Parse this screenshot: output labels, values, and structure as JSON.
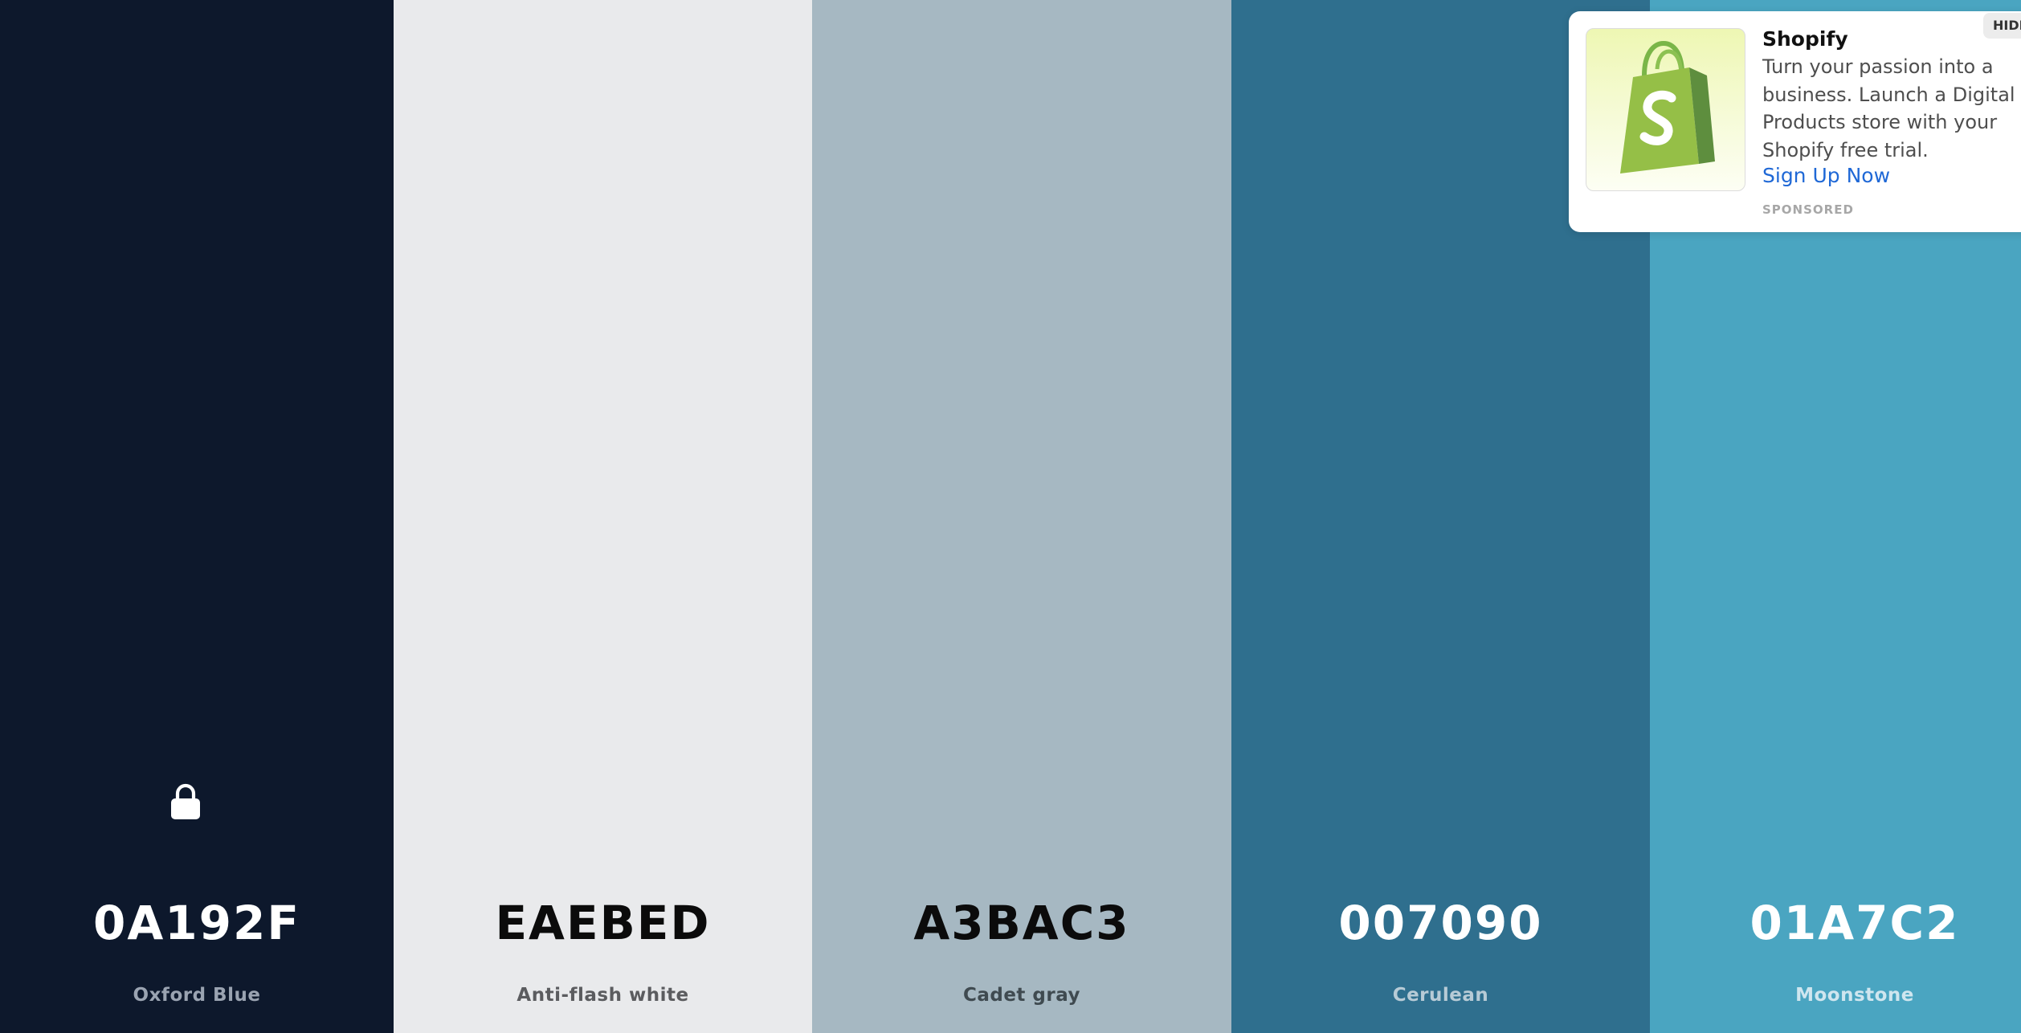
{
  "palette": {
    "colors": [
      {
        "hex": "0A192F",
        "name": "Oxford Blue",
        "bg": "#0d182c",
        "hex_color": "#ffffff",
        "name_color": "#9aa3b1",
        "locked": true
      },
      {
        "hex": "EAEBED",
        "name": "Anti-flash white",
        "bg": "#e9eaec",
        "hex_color": "#0b0b0b",
        "name_color": "#5b5c5f"
      },
      {
        "hex": "A3BAC3",
        "name": "Cadet gray",
        "bg": "#a6b8c2",
        "hex_color": "#0b0b0b",
        "name_color": "#3f4a50"
      },
      {
        "hex": "007090",
        "name": "Cerulean",
        "bg": "#2f6f8e",
        "hex_color": "#ffffff",
        "name_color": "#b7cbd6"
      },
      {
        "hex": "01A7C2",
        "name": "Moonstone",
        "bg": "#4aa5c1",
        "hex_color": "#ffffff",
        "name_color": "#cfe6ef"
      }
    ],
    "lock_icon": "lock-icon"
  },
  "ad": {
    "title": "Shopify",
    "body": "Turn your passion into a business. Launch a Digital Products store with your Shopify free trial.",
    "cta": "Sign Up Now",
    "sponsored": "SPONSORED",
    "hide_label": "HIDE",
    "logo_icon": "shopify-bag-icon",
    "cta_color": "#1f68d6"
  }
}
